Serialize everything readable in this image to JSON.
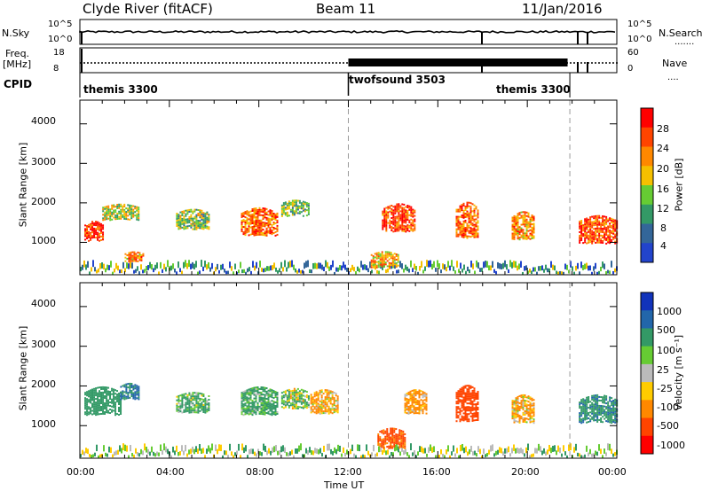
{
  "header": {
    "station": "Clyde River (fitACF)",
    "beam": "Beam 11",
    "date": "11/Jan/2016"
  },
  "status_panels": {
    "nsky_label": "N.Sky",
    "nsky_ticks": [
      "10^5",
      "10^0"
    ],
    "nsearch_label": "N.Search",
    "nsearch_ticks": [
      "10^5",
      "10^0"
    ],
    "freq_label_line1": "Freq.",
    "freq_label_line2": "[MHz]",
    "freq_ticks": [
      "18",
      "8"
    ],
    "nave_label": "Nave",
    "nave_ticks": [
      "60",
      "0"
    ],
    "cpid_label": "CPID",
    "cpid_segments": [
      {
        "name": "themis 3300",
        "start_hour": 0
      },
      {
        "name": "twofsound 3503",
        "start_hour": 12
      },
      {
        "name": "themis 3300",
        "start_hour": 22
      }
    ]
  },
  "power_colorbar": {
    "label": "Power [dB]",
    "ticks": [
      "28",
      "24",
      "20",
      "16",
      "12",
      "8",
      "4"
    ],
    "colors": [
      "#ff0000",
      "#ff4400",
      "#ff8800",
      "#f5c000",
      "#66cc33",
      "#339966",
      "#336699",
      "#2244cc"
    ]
  },
  "velocity_colorbar": {
    "label": "Velocity [m s⁻¹]",
    "ticks": [
      "1000",
      "500",
      "100",
      "25",
      "-25",
      "-100",
      "-500",
      "-1000"
    ],
    "colors": [
      "#1133bb",
      "#2266aa",
      "#339966",
      "#66cc33",
      "#bbbbbb",
      "#ffcc00",
      "#ff8800",
      "#ff4400",
      "#ff0000"
    ]
  },
  "axes": {
    "y_label": "Slant Range [km]",
    "y_ticks": [
      "4000",
      "3000",
      "2000",
      "1000"
    ],
    "x_label": "Time UT",
    "x_ticks": [
      "00:00",
      "04:00",
      "08:00",
      "12:00",
      "16:00",
      "20:00",
      "00:00"
    ]
  },
  "chart_data": [
    {
      "type": "heatmap",
      "title": "Power",
      "xlabel": "Time UT",
      "ylabel": "Slant Range [km]",
      "xlim": [
        0,
        24
      ],
      "ylim": [
        180,
        4600
      ],
      "colorbar_label": "Power [dB]",
      "echo_regions": [
        {
          "t_start": 0.2,
          "t_end": 1.0,
          "r_center": 1200,
          "r_span": 500,
          "power_db": 26
        },
        {
          "t_start": 1.0,
          "t_end": 2.6,
          "r_center": 1700,
          "r_span": 400,
          "power_db": 14
        },
        {
          "t_start": 2.0,
          "t_end": 2.8,
          "r_center": 600,
          "r_span": 250,
          "power_db": 20
        },
        {
          "t_start": 4.3,
          "t_end": 5.8,
          "r_center": 1500,
          "r_span": 500,
          "power_db": 12
        },
        {
          "t_start": 7.2,
          "t_end": 8.8,
          "r_center": 1400,
          "r_span": 700,
          "power_db": 22
        },
        {
          "t_start": 9.0,
          "t_end": 10.2,
          "r_center": 1800,
          "r_span": 400,
          "power_db": 10
        },
        {
          "t_start": 13.5,
          "t_end": 15.0,
          "r_center": 1500,
          "r_span": 700,
          "power_db": 24
        },
        {
          "t_start": 13.0,
          "t_end": 14.2,
          "r_center": 500,
          "r_span": 400,
          "power_db": 18
        },
        {
          "t_start": 16.8,
          "t_end": 17.8,
          "r_center": 1400,
          "r_span": 900,
          "power_db": 22
        },
        {
          "t_start": 19.3,
          "t_end": 20.3,
          "r_center": 1300,
          "r_span": 700,
          "power_db": 20
        },
        {
          "t_start": 22.3,
          "t_end": 24.0,
          "r_center": 1200,
          "r_span": 700,
          "power_db": 24
        }
      ]
    },
    {
      "type": "heatmap",
      "title": "Velocity",
      "xlabel": "Time UT",
      "ylabel": "Slant Range [km]",
      "xlim": [
        0,
        24
      ],
      "ylim": [
        180,
        4600
      ],
      "colorbar_label": "Velocity [m s⁻¹]",
      "echo_regions": [
        {
          "t_start": 0.2,
          "t_end": 1.8,
          "r_center": 1500,
          "r_span": 700,
          "velocity": 300
        },
        {
          "t_start": 1.8,
          "t_end": 2.6,
          "r_center": 1800,
          "r_span": 400,
          "velocity": 600
        },
        {
          "t_start": 4.3,
          "t_end": 5.8,
          "r_center": 1500,
          "r_span": 500,
          "velocity": 150
        },
        {
          "t_start": 7.2,
          "t_end": 8.8,
          "r_center": 1500,
          "r_span": 700,
          "velocity": 200
        },
        {
          "t_start": 9.0,
          "t_end": 10.2,
          "r_center": 1600,
          "r_span": 500,
          "velocity": 60
        },
        {
          "t_start": 10.3,
          "t_end": 11.5,
          "r_center": 1500,
          "r_span": 600,
          "velocity": -150
        },
        {
          "t_start": 13.3,
          "t_end": 14.5,
          "r_center": 600,
          "r_span": 500,
          "velocity": -600
        },
        {
          "t_start": 14.5,
          "t_end": 15.5,
          "r_center": 1500,
          "r_span": 600,
          "velocity": -200
        },
        {
          "t_start": 16.8,
          "t_end": 17.8,
          "r_center": 1400,
          "r_span": 900,
          "velocity": -700
        },
        {
          "t_start": 19.3,
          "t_end": 20.3,
          "r_center": 1300,
          "r_span": 700,
          "velocity": -150
        },
        {
          "t_start": 22.3,
          "t_end": 24.0,
          "r_center": 1300,
          "r_span": 700,
          "velocity": 400
        }
      ]
    }
  ]
}
